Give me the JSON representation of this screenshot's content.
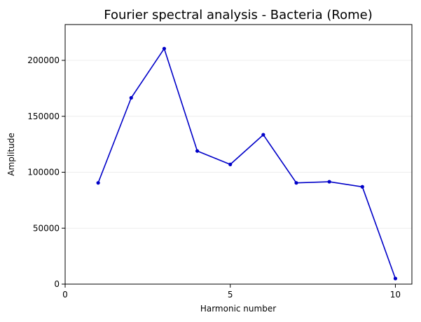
{
  "chart_data": {
    "type": "line",
    "title": "Fourier spectral analysis - Bacteria (Rome)",
    "xlabel": "Harmonic number",
    "ylabel": "Amplitude",
    "x": [
      1,
      2,
      3,
      4,
      5,
      6,
      7,
      8,
      9,
      10
    ],
    "series": [
      {
        "values": [
          90500,
          166500,
          210500,
          119000,
          107000,
          133500,
          90500,
          91500,
          87000,
          5000
        ],
        "color": "#0000c8",
        "marker": "circle"
      }
    ],
    "xlim": [
      0,
      10.5
    ],
    "ylim": [
      0,
      232000
    ],
    "xticks": [
      0,
      5,
      10
    ],
    "xtick_labels": [
      "0",
      "5",
      "10"
    ],
    "yticks": [
      0,
      50000,
      100000,
      150000,
      200000
    ],
    "ytick_labels": [
      "0",
      "50000",
      "100000",
      "150000",
      "200000"
    ],
    "grid": "horizontal",
    "grid_color": "#e6e6e6"
  }
}
